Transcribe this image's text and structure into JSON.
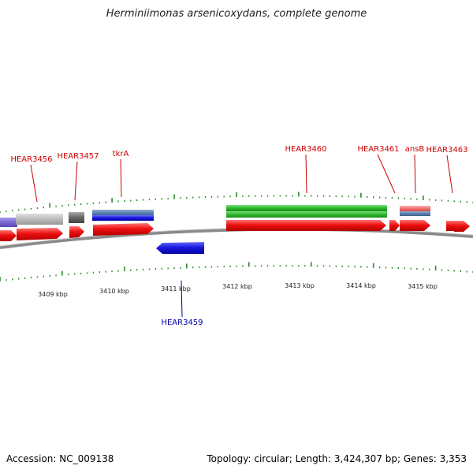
{
  "title": "Herminiimonas arsenicoxydans, complete genome",
  "footer": {
    "accession": "Accession: NC_009138",
    "summary": "Topology: circular; Length: 3,424,307 bp; Genes: 3,353"
  },
  "scale_labels": [
    "3409 kbp",
    "3410 kbp",
    "3411 kbp",
    "3412 kbp",
    "3413 kbp",
    "3414 kbp",
    "3415 kbp"
  ],
  "gene_labels": {
    "HEAR3456": "HEAR3456",
    "HEAR3457": "HEAR3457",
    "tkrA": "tkrA",
    "HEAR3460": "HEAR3460",
    "HEAR3461": "HEAR3461",
    "ansB": "ansB",
    "HEAR3463": "HEAR3463",
    "HEAR3459": "HEAR3459"
  },
  "colors": {
    "forward_label": "#cc0000",
    "reverse_label": "#0000aa",
    "cds_red": "#ee1111",
    "cds_blue": "#1a1ae0",
    "green_feature": "#2db82d",
    "tick_green": "#2a8a2a",
    "backbone": "#777777"
  }
}
